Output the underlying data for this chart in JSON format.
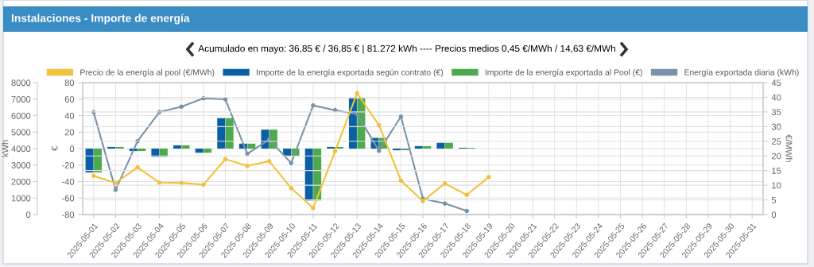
{
  "chart_data": {
    "type": "bar",
    "title": "Instalaciones - Importe de energía",
    "subtitle": "Acumulado en mayo: 36,85 € / 36,85 € | 81.272 kWh ---- Precios medios 0,45 €/MWh / 14,63 €/MWh",
    "categories": [
      "2025-05-01",
      "2025-05-02",
      "2025-05-03",
      "2025-05-04",
      "2025-05-05",
      "2025-05-06",
      "2025-05-07",
      "2025-05-08",
      "2025-05-09",
      "2025-05-10",
      "2025-05-11",
      "2025-05-12",
      "2025-05-13",
      "2025-05-14",
      "2025-05-15",
      "2025-05-16",
      "2025-05-17",
      "2025-05-18",
      "2025-05-19",
      "2025-05-20",
      "2025-05-21",
      "2025-05-22",
      "2025-05-23",
      "2025-05-24",
      "2025-05-25",
      "2025-05-26",
      "2025-05-27",
      "2025-05-28",
      "2025-05-29",
      "2025-05-30",
      "2025-05-31"
    ],
    "series": [
      {
        "name": "Precio de la energía al pool (€/MWh)",
        "type": "line",
        "axis": "y2",
        "color": "#f0c33c",
        "values": [
          13.2,
          10.8,
          16.1,
          10.9,
          10.8,
          10.2,
          18.9,
          16.6,
          18.2,
          9.0,
          2.2,
          21.6,
          41.4,
          30.5,
          11.6,
          4.6,
          10.6,
          6.7,
          12.8,
          null,
          null,
          null,
          null,
          null,
          null,
          null,
          null,
          null,
          null,
          null,
          null
        ]
      },
      {
        "name": "Importe de la energía exportada según contrato (€)",
        "color": "#0b5fa5",
        "values": [
          -29,
          2,
          -3,
          -10,
          4,
          -5,
          37,
          6,
          23,
          -9,
          -63,
          2,
          61,
          13,
          -2,
          3,
          7,
          1,
          null,
          null,
          null,
          null,
          null,
          null,
          null,
          null,
          null,
          null,
          null,
          null,
          null
        ]
      },
      {
        "name": "Importe de la energía exportada al Pool (€)",
        "color": "#4daa4f",
        "values": [
          -29,
          2,
          -3,
          -10,
          4,
          -5,
          37,
          6,
          23,
          -9,
          -63,
          2,
          61,
          13,
          -2,
          3,
          7,
          1,
          null,
          null,
          null,
          null,
          null,
          null,
          null,
          null,
          null,
          null,
          null,
          null,
          null
        ]
      },
      {
        "name": "Energía exportada diaria (kWh)",
        "type": "line",
        "axis": "y3",
        "color": "#7a93a8",
        "values": [
          6200,
          1500,
          4450,
          6220,
          6540,
          7050,
          6990,
          3680,
          4550,
          3120,
          6620,
          6330,
          6100,
          3860,
          5940,
          960,
          670,
          220,
          null,
          null,
          null,
          null,
          null,
          null,
          null,
          null,
          null,
          null,
          null,
          null,
          null
        ]
      }
    ],
    "ylabel": "€",
    "ylim": [
      -80,
      80
    ],
    "yticks": [
      -80,
      -60,
      -40,
      -20,
      0,
      20,
      40,
      60,
      80
    ],
    "y2label": "€/MWh",
    "y2lim": [
      0,
      45
    ],
    "y2ticks": [
      0,
      5,
      10,
      15,
      20,
      25,
      30,
      35,
      40,
      45
    ],
    "y3label": "kWh",
    "y3lim": [
      0,
      8000
    ],
    "y3ticks": [
      0,
      1000,
      2000,
      3000,
      4000,
      5000,
      6000,
      7000,
      8000
    ],
    "grid": true,
    "legend": "top",
    "marker": "circle",
    "line_style": "solid"
  }
}
